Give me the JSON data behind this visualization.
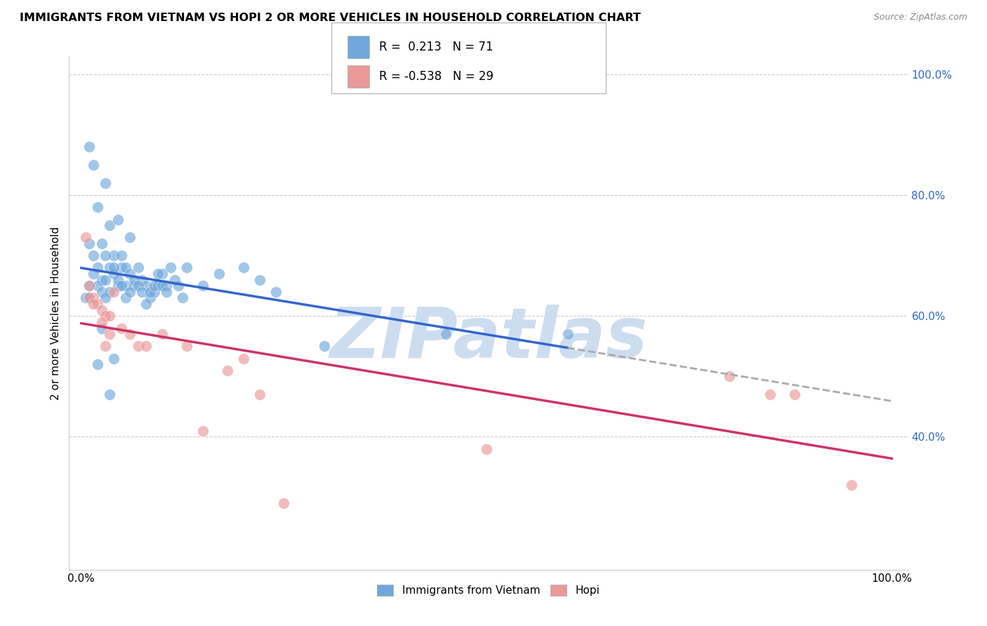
{
  "title": "IMMIGRANTS FROM VIETNAM VS HOPI 2 OR MORE VEHICLES IN HOUSEHOLD CORRELATION CHART",
  "source": "Source: ZipAtlas.com",
  "ylabel": "2 or more Vehicles in Household",
  "right_ytick_labels": [
    "40.0%",
    "60.0%",
    "80.0%",
    "100.0%"
  ],
  "right_ytick_values": [
    0.4,
    0.6,
    0.8,
    1.0
  ],
  "series1_label": "Immigrants from Vietnam",
  "series2_label": "Hopi",
  "blue_color": "#6fa8dc",
  "pink_color": "#ea9999",
  "blue_line_color": "#3366cc",
  "pink_line_color": "#cc3366",
  "watermark_color": "#ccddf0",
  "blue_dots": [
    [
      0.5,
      63.0
    ],
    [
      1.0,
      88.0
    ],
    [
      1.5,
      85.0
    ],
    [
      2.0,
      78.0
    ],
    [
      2.5,
      72.0
    ],
    [
      3.0,
      82.0
    ],
    [
      3.5,
      75.0
    ],
    [
      4.0,
      70.0
    ],
    [
      4.5,
      76.0
    ],
    [
      5.0,
      68.0
    ],
    [
      5.5,
      65.0
    ],
    [
      6.0,
      73.0
    ],
    [
      1.0,
      72.0
    ],
    [
      1.5,
      70.0
    ],
    [
      2.0,
      68.0
    ],
    [
      2.5,
      66.0
    ],
    [
      3.0,
      70.0
    ],
    [
      3.5,
      68.0
    ],
    [
      4.0,
      67.0
    ],
    [
      4.5,
      65.0
    ],
    [
      5.0,
      70.0
    ],
    [
      5.5,
      68.0
    ],
    [
      6.0,
      67.0
    ],
    [
      6.5,
      65.0
    ],
    [
      7.0,
      68.0
    ],
    [
      7.5,
      66.0
    ],
    [
      8.0,
      65.0
    ],
    [
      8.5,
      63.0
    ],
    [
      9.0,
      64.0
    ],
    [
      9.5,
      65.0
    ],
    [
      10.0,
      67.0
    ],
    [
      10.5,
      65.0
    ],
    [
      11.0,
      68.0
    ],
    [
      11.5,
      66.0
    ],
    [
      12.0,
      65.0
    ],
    [
      12.5,
      63.0
    ],
    [
      1.0,
      65.0
    ],
    [
      1.5,
      67.0
    ],
    [
      2.0,
      65.0
    ],
    [
      2.5,
      64.0
    ],
    [
      3.0,
      66.0
    ],
    [
      3.5,
      64.0
    ],
    [
      4.0,
      68.0
    ],
    [
      4.5,
      66.0
    ],
    [
      5.0,
      65.0
    ],
    [
      5.5,
      63.0
    ],
    [
      6.0,
      64.0
    ],
    [
      6.5,
      66.0
    ],
    [
      7.0,
      65.0
    ],
    [
      7.5,
      64.0
    ],
    [
      8.0,
      62.0
    ],
    [
      8.5,
      64.0
    ],
    [
      9.0,
      65.0
    ],
    [
      9.5,
      67.0
    ],
    [
      10.0,
      65.0
    ],
    [
      10.5,
      64.0
    ],
    [
      13.0,
      68.0
    ],
    [
      15.0,
      65.0
    ],
    [
      17.0,
      67.0
    ],
    [
      20.0,
      68.0
    ],
    [
      22.0,
      66.0
    ],
    [
      1.0,
      63.0
    ],
    [
      2.0,
      52.0
    ],
    [
      3.0,
      63.0
    ],
    [
      2.5,
      58.0
    ],
    [
      4.0,
      53.0
    ],
    [
      3.5,
      47.0
    ],
    [
      24.0,
      64.0
    ],
    [
      30.0,
      55.0
    ],
    [
      45.0,
      57.0
    ],
    [
      60.0,
      57.0
    ]
  ],
  "pink_dots": [
    [
      0.5,
      73.0
    ],
    [
      1.0,
      65.0
    ],
    [
      1.5,
      63.0
    ],
    [
      2.0,
      62.0
    ],
    [
      2.5,
      61.0
    ],
    [
      3.0,
      60.0
    ],
    [
      3.5,
      60.0
    ],
    [
      4.0,
      64.0
    ],
    [
      1.0,
      63.0
    ],
    [
      1.5,
      62.0
    ],
    [
      2.5,
      59.0
    ],
    [
      3.0,
      55.0
    ],
    [
      3.5,
      57.0
    ],
    [
      5.0,
      58.0
    ],
    [
      6.0,
      57.0
    ],
    [
      7.0,
      55.0
    ],
    [
      8.0,
      55.0
    ],
    [
      10.0,
      57.0
    ],
    [
      13.0,
      55.0
    ],
    [
      15.0,
      41.0
    ],
    [
      18.0,
      51.0
    ],
    [
      20.0,
      53.0
    ],
    [
      22.0,
      47.0
    ],
    [
      25.0,
      29.0
    ],
    [
      50.0,
      38.0
    ],
    [
      80.0,
      50.0
    ],
    [
      85.0,
      47.0
    ],
    [
      88.0,
      47.0
    ],
    [
      95.0,
      32.0
    ]
  ],
  "xlim": [
    0.0,
    100.0
  ],
  "ylim_min": 18.0,
  "ylim_max": 103.0
}
